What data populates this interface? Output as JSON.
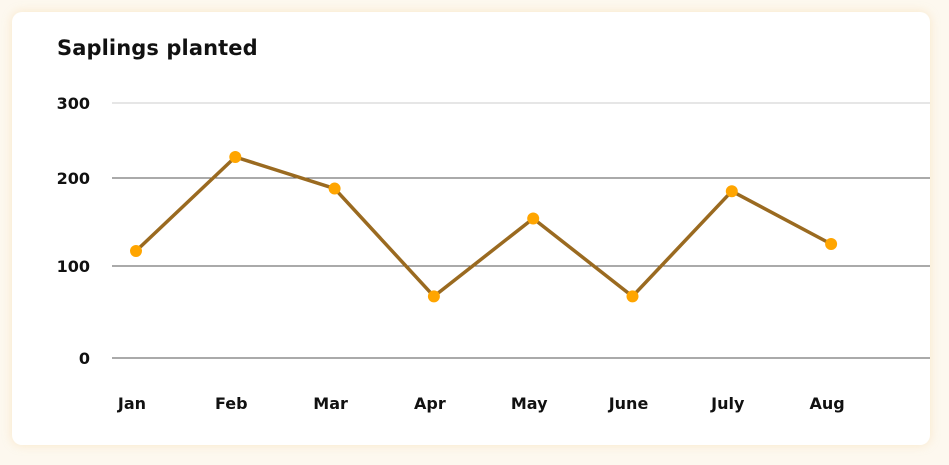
{
  "chart_data": {
    "type": "line",
    "title": "Saplings planted",
    "xlabel": "",
    "ylabel": "",
    "categories": [
      "Jan",
      "Feb",
      "Mar",
      "Apr",
      "May",
      "June",
      "July",
      "Aug"
    ],
    "values": [
      117,
      228,
      188,
      67,
      154,
      67,
      185,
      125
    ],
    "ylim": [
      0,
      300
    ],
    "yticks": [
      "0",
      "100",
      "200",
      "300"
    ],
    "ytick_values": [
      0,
      100,
      200,
      300
    ],
    "grid": true,
    "legend": "none",
    "line_color": "#9a6a20",
    "marker_color": "#ffa500",
    "gridline_color_top": "#cccccc",
    "gridline_color": "#555555"
  }
}
